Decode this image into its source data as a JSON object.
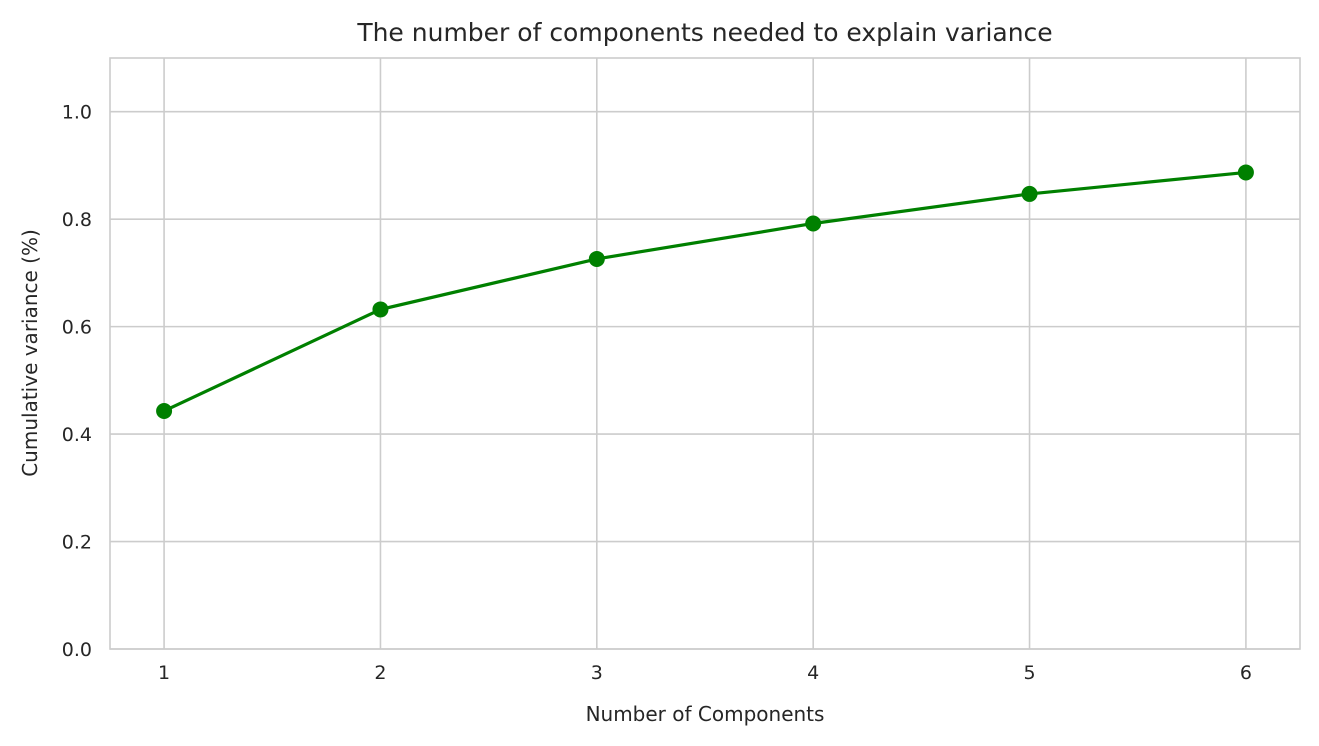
{
  "chart_data": {
    "type": "line",
    "title": "The number of components needed to explain variance",
    "xlabel": "Number of Components",
    "ylabel": "Cumulative variance (%)",
    "x": [
      1,
      2,
      3,
      4,
      5,
      6
    ],
    "series": [
      {
        "values": [
          0.443,
          0.632,
          0.726,
          0.792,
          0.847,
          0.887
        ]
      }
    ],
    "xlim": [
      0.75,
      6.25
    ],
    "ylim": [
      0.0,
      1.1
    ],
    "xticks": [
      "1",
      "2",
      "3",
      "4",
      "5",
      "6"
    ],
    "yticks": [
      "0.0",
      "0.2",
      "0.4",
      "0.6",
      "0.8",
      "1.0"
    ],
    "grid": true,
    "line_color": "#008000",
    "grid_color": "#cccccc"
  }
}
